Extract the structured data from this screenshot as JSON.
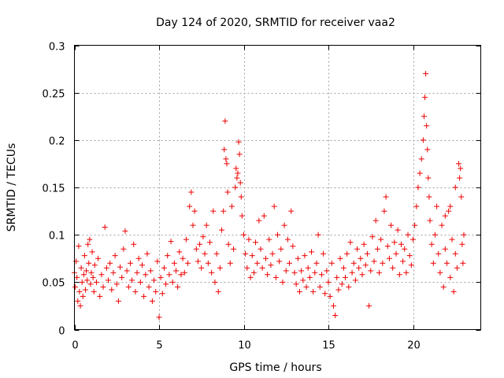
{
  "chart_data": {
    "type": "scatter",
    "title": "Day 124 of 2020, SRMTID for receiver vaa2",
    "xlabel": "GPS time / hours",
    "ylabel": "SRMTID / TECUs",
    "xlim": [
      0,
      24
    ],
    "ylim": [
      0,
      0.3
    ],
    "grid": true,
    "marker": "+",
    "marker_color": "#ee0000",
    "xticks": [
      0,
      5,
      10,
      15,
      20
    ],
    "xtick_labels": [
      "0",
      "5",
      "10",
      "15",
      "20"
    ],
    "yticks": [
      0,
      0.05,
      0.1,
      0.15,
      0.2,
      0.25,
      0.3
    ],
    "ytick_labels": [
      "0",
      "0.05",
      "0.1",
      "0.15",
      "0.2",
      "0.25",
      "0.3"
    ],
    "series": [
      {
        "name": "SRMTID",
        "points": [
          [
            0.0,
            0.06
          ],
          [
            0.05,
            0.045
          ],
          [
            0.1,
            0.072
          ],
          [
            0.15,
            0.055
          ],
          [
            0.2,
            0.03
          ],
          [
            0.25,
            0.088
          ],
          [
            0.3,
            0.04
          ],
          [
            0.35,
            0.025
          ],
          [
            0.4,
            0.065
          ],
          [
            0.45,
            0.05
          ],
          [
            0.5,
            0.035
          ],
          [
            0.55,
            0.058
          ],
          [
            0.6,
            0.078
          ],
          [
            0.65,
            0.042
          ],
          [
            0.7,
            0.062
          ],
          [
            0.75,
            0.052
          ],
          [
            0.8,
            0.09
          ],
          [
            0.85,
            0.07
          ],
          [
            0.9,
            0.095
          ],
          [
            0.95,
            0.048
          ],
          [
            1.0,
            0.06
          ],
          [
            1.05,
            0.082
          ],
          [
            1.1,
            0.055
          ],
          [
            1.15,
            0.04
          ],
          [
            1.2,
            0.068
          ],
          [
            1.3,
            0.05
          ],
          [
            1.4,
            0.075
          ],
          [
            1.5,
            0.035
          ],
          [
            1.6,
            0.058
          ],
          [
            1.7,
            0.045
          ],
          [
            1.8,
            0.108
          ],
          [
            1.9,
            0.065
          ],
          [
            2.0,
            0.052
          ],
          [
            2.1,
            0.07
          ],
          [
            2.2,
            0.042
          ],
          [
            2.3,
            0.06
          ],
          [
            2.4,
            0.078
          ],
          [
            2.5,
            0.048
          ],
          [
            2.6,
            0.03
          ],
          [
            2.7,
            0.066
          ],
          [
            2.8,
            0.055
          ],
          [
            2.9,
            0.085
          ],
          [
            3.0,
            0.104
          ],
          [
            3.1,
            0.062
          ],
          [
            3.2,
            0.045
          ],
          [
            3.3,
            0.07
          ],
          [
            3.4,
            0.052
          ],
          [
            3.5,
            0.09
          ],
          [
            3.6,
            0.04
          ],
          [
            3.7,
            0.06
          ],
          [
            3.8,
            0.075
          ],
          [
            3.9,
            0.05
          ],
          [
            4.0,
            0.068
          ],
          [
            4.1,
            0.035
          ],
          [
            4.2,
            0.058
          ],
          [
            4.3,
            0.08
          ],
          [
            4.4,
            0.045
          ],
          [
            4.5,
            0.062
          ],
          [
            4.6,
            0.03
          ],
          [
            4.7,
            0.052
          ],
          [
            4.8,
            0.04
          ],
          [
            4.9,
            0.072
          ],
          [
            5.0,
            0.013
          ],
          [
            5.1,
            0.055
          ],
          [
            5.2,
            0.038
          ],
          [
            5.3,
            0.065
          ],
          [
            5.4,
            0.048
          ],
          [
            5.5,
            0.078
          ],
          [
            5.6,
            0.058
          ],
          [
            5.7,
            0.093
          ],
          [
            5.8,
            0.05
          ],
          [
            5.9,
            0.07
          ],
          [
            6.0,
            0.062
          ],
          [
            6.1,
            0.045
          ],
          [
            6.2,
            0.082
          ],
          [
            6.3,
            0.058
          ],
          [
            6.4,
            0.075
          ],
          [
            6.5,
            0.06
          ],
          [
            6.6,
            0.095
          ],
          [
            6.7,
            0.07
          ],
          [
            6.8,
            0.13
          ],
          [
            6.9,
            0.145
          ],
          [
            7.0,
            0.11
          ],
          [
            7.1,
            0.125
          ],
          [
            7.2,
            0.085
          ],
          [
            7.3,
            0.072
          ],
          [
            7.4,
            0.09
          ],
          [
            7.5,
            0.065
          ],
          [
            7.6,
            0.098
          ],
          [
            7.7,
            0.08
          ],
          [
            7.8,
            0.11
          ],
          [
            7.9,
            0.07
          ],
          [
            8.0,
            0.092
          ],
          [
            8.1,
            0.06
          ],
          [
            8.2,
            0.125
          ],
          [
            8.3,
            0.05
          ],
          [
            8.4,
            0.08
          ],
          [
            8.5,
            0.04
          ],
          [
            8.6,
            0.065
          ],
          [
            8.7,
            0.105
          ],
          [
            8.8,
            0.125
          ],
          [
            8.85,
            0.19
          ],
          [
            8.9,
            0.22
          ],
          [
            8.95,
            0.18
          ],
          [
            9.0,
            0.175
          ],
          [
            9.05,
            0.145
          ],
          [
            9.1,
            0.09
          ],
          [
            9.2,
            0.07
          ],
          [
            9.3,
            0.13
          ],
          [
            9.4,
            0.085
          ],
          [
            9.5,
            0.15
          ],
          [
            9.55,
            0.17
          ],
          [
            9.6,
            0.16
          ],
          [
            9.65,
            0.165
          ],
          [
            9.7,
            0.198
          ],
          [
            9.75,
            0.185
          ],
          [
            9.8,
            0.155
          ],
          [
            9.85,
            0.14
          ],
          [
            9.9,
            0.12
          ],
          [
            10.0,
            0.1
          ],
          [
            10.1,
            0.08
          ],
          [
            10.2,
            0.065
          ],
          [
            10.3,
            0.095
          ],
          [
            10.4,
            0.055
          ],
          [
            10.5,
            0.078
          ],
          [
            10.6,
            0.06
          ],
          [
            10.7,
            0.092
          ],
          [
            10.8,
            0.07
          ],
          [
            10.9,
            0.115
          ],
          [
            11.0,
            0.085
          ],
          [
            11.1,
            0.065
          ],
          [
            11.2,
            0.12
          ],
          [
            11.3,
            0.075
          ],
          [
            11.4,
            0.058
          ],
          [
            11.5,
            0.095
          ],
          [
            11.6,
            0.068
          ],
          [
            11.7,
            0.08
          ],
          [
            11.8,
            0.13
          ],
          [
            11.9,
            0.055
          ],
          [
            12.0,
            0.1
          ],
          [
            12.1,
            0.072
          ],
          [
            12.2,
            0.085
          ],
          [
            12.3,
            0.05
          ],
          [
            12.4,
            0.11
          ],
          [
            12.5,
            0.062
          ],
          [
            12.6,
            0.095
          ],
          [
            12.7,
            0.07
          ],
          [
            12.8,
            0.125
          ],
          [
            12.9,
            0.088
          ],
          [
            13.0,
            0.06
          ],
          [
            13.1,
            0.048
          ],
          [
            13.2,
            0.075
          ],
          [
            13.3,
            0.04
          ],
          [
            13.4,
            0.062
          ],
          [
            13.5,
            0.052
          ],
          [
            13.6,
            0.078
          ],
          [
            13.7,
            0.045
          ],
          [
            13.8,
            0.065
          ],
          [
            13.9,
            0.055
          ],
          [
            14.0,
            0.082
          ],
          [
            14.1,
            0.04
          ],
          [
            14.2,
            0.06
          ],
          [
            14.3,
            0.07
          ],
          [
            14.4,
            0.1
          ],
          [
            14.5,
            0.045
          ],
          [
            14.6,
            0.058
          ],
          [
            14.7,
            0.08
          ],
          [
            14.8,
            0.038
          ],
          [
            14.9,
            0.062
          ],
          [
            15.0,
            0.05
          ],
          [
            15.1,
            0.035
          ],
          [
            15.2,
            0.07
          ],
          [
            15.3,
            0.025
          ],
          [
            15.4,
            0.015
          ],
          [
            15.5,
            0.055
          ],
          [
            15.6,
            0.042
          ],
          [
            15.7,
            0.075
          ],
          [
            15.8,
            0.048
          ],
          [
            15.9,
            0.065
          ],
          [
            16.0,
            0.055
          ],
          [
            16.1,
            0.08
          ],
          [
            16.2,
            0.045
          ],
          [
            16.3,
            0.092
          ],
          [
            16.4,
            0.06
          ],
          [
            16.5,
            0.07
          ],
          [
            16.6,
            0.052
          ],
          [
            16.7,
            0.085
          ],
          [
            16.8,
            0.065
          ],
          [
            16.9,
            0.075
          ],
          [
            17.0,
            0.058
          ],
          [
            17.1,
            0.09
          ],
          [
            17.2,
            0.068
          ],
          [
            17.3,
            0.08
          ],
          [
            17.4,
            0.025
          ],
          [
            17.5,
            0.062
          ],
          [
            17.6,
            0.098
          ],
          [
            17.7,
            0.072
          ],
          [
            17.8,
            0.115
          ],
          [
            17.9,
            0.085
          ],
          [
            18.0,
            0.06
          ],
          [
            18.1,
            0.095
          ],
          [
            18.2,
            0.07
          ],
          [
            18.3,
            0.125
          ],
          [
            18.4,
            0.14
          ],
          [
            18.5,
            0.088
          ],
          [
            18.6,
            0.075
          ],
          [
            18.7,
            0.11
          ],
          [
            18.8,
            0.065
          ],
          [
            18.9,
            0.092
          ],
          [
            19.0,
            0.08
          ],
          [
            19.1,
            0.105
          ],
          [
            19.2,
            0.058
          ],
          [
            19.3,
            0.09
          ],
          [
            19.4,
            0.072
          ],
          [
            19.5,
            0.085
          ],
          [
            19.6,
            0.06
          ],
          [
            19.7,
            0.1
          ],
          [
            19.8,
            0.078
          ],
          [
            19.9,
            0.068
          ],
          [
            20.0,
            0.095
          ],
          [
            20.1,
            0.11
          ],
          [
            20.2,
            0.13
          ],
          [
            20.3,
            0.15
          ],
          [
            20.4,
            0.165
          ],
          [
            20.5,
            0.18
          ],
          [
            20.6,
            0.2
          ],
          [
            20.65,
            0.225
          ],
          [
            20.7,
            0.245
          ],
          [
            20.75,
            0.27
          ],
          [
            20.8,
            0.215
          ],
          [
            20.85,
            0.19
          ],
          [
            20.9,
            0.16
          ],
          [
            20.95,
            0.14
          ],
          [
            21.0,
            0.115
          ],
          [
            21.1,
            0.09
          ],
          [
            21.2,
            0.07
          ],
          [
            21.3,
            0.1
          ],
          [
            21.4,
            0.13
          ],
          [
            21.5,
            0.08
          ],
          [
            21.6,
            0.06
          ],
          [
            21.7,
            0.11
          ],
          [
            21.8,
            0.045
          ],
          [
            21.9,
            0.085
          ],
          [
            22.0,
            0.07
          ],
          [
            22.1,
            0.125
          ],
          [
            22.2,
            0.055
          ],
          [
            22.3,
            0.095
          ],
          [
            22.4,
            0.04
          ],
          [
            22.5,
            0.08
          ],
          [
            22.6,
            0.065
          ],
          [
            22.7,
            0.175
          ],
          [
            22.75,
            0.16
          ],
          [
            22.8,
            0.17
          ],
          [
            22.85,
            0.14
          ],
          [
            22.9,
            0.09
          ],
          [
            22.95,
            0.07
          ],
          [
            23.0,
            0.1
          ],
          [
            22.5,
            0.15
          ],
          [
            22.2,
            0.13
          ],
          [
            21.9,
            0.12
          ]
        ]
      }
    ]
  }
}
